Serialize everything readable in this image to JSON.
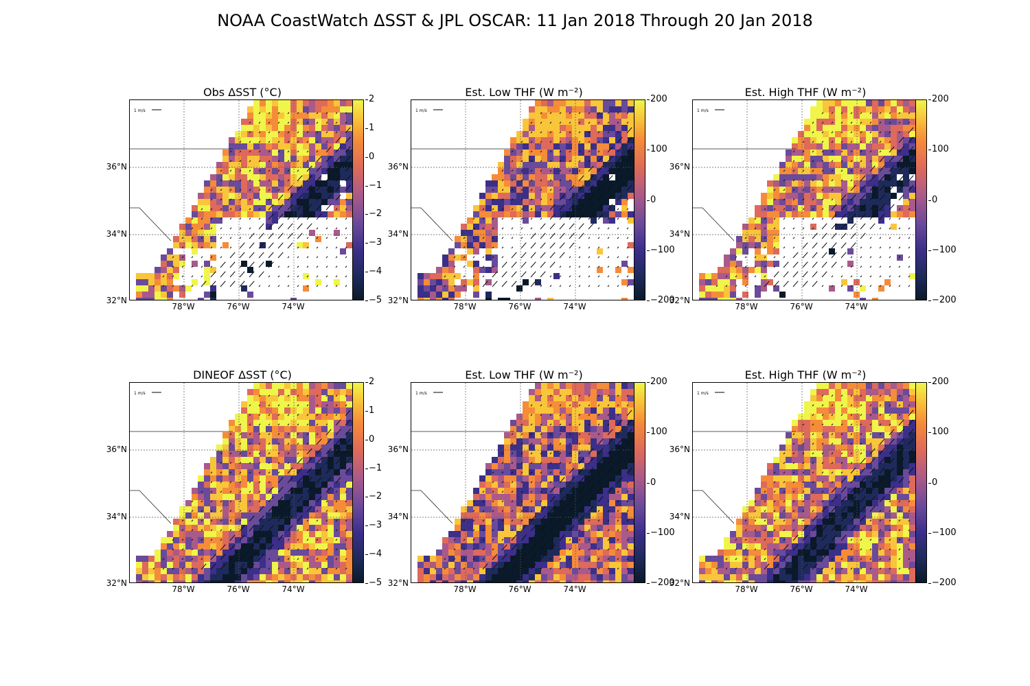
{
  "title": "NOAA CoastWatch ΔSST & JPL OSCAR: 11 Jan 2018 Through 20 Jan 2018",
  "panels": [
    {
      "title": "Obs ΔSST ($^\\circ$C)",
      "display_title": "Obs ΔSST (°C)",
      "cbar_ticks": [
        "2",
        "1",
        "0",
        "−1",
        "−2",
        "−3",
        "−4",
        "−5"
      ]
    },
    {
      "title": "Est. Low THF (W m$^{-2}$)",
      "display_title": "Est. Low THF (W m⁻²)",
      "cbar_ticks": [
        "200",
        "100",
        "0",
        "−100",
        "−200"
      ]
    },
    {
      "title": "Est. High THF (W m$^{-2}$)",
      "display_title": "Est. High THF (W m⁻²)",
      "cbar_ticks": [
        "200",
        "100",
        "0",
        "−100",
        "−200"
      ]
    },
    {
      "title": "DINEOF ΔSST ($^\\circ$C)",
      "display_title": "DINEOF ΔSST (°C)",
      "cbar_ticks": [
        "2",
        "1",
        "0",
        "−1",
        "−2",
        "−3",
        "−4",
        "−5"
      ]
    },
    {
      "title": "Est. Low THF (W m$^{-2}$)",
      "display_title": "Est. Low THF (W m⁻²)",
      "cbar_ticks": [
        "200",
        "100",
        "0",
        "−100",
        "−200"
      ]
    },
    {
      "title": "Est. High THF (W m$^{-2}$)",
      "display_title": "Est. High THF (W m⁻²)",
      "cbar_ticks": [
        "200",
        "100",
        "0",
        "−100",
        "−200"
      ]
    }
  ],
  "axes": {
    "lat_labels": [
      "36°N",
      "34°N",
      "32°N"
    ],
    "lon_labels": [
      "78°W",
      "76°W",
      "74°W"
    ]
  },
  "quiver_key": "1 m/s",
  "colors": {
    "land": "#ffffff",
    "low": "#0a1a2a",
    "mid": "#a95a8a",
    "high": "#eff54a"
  }
}
